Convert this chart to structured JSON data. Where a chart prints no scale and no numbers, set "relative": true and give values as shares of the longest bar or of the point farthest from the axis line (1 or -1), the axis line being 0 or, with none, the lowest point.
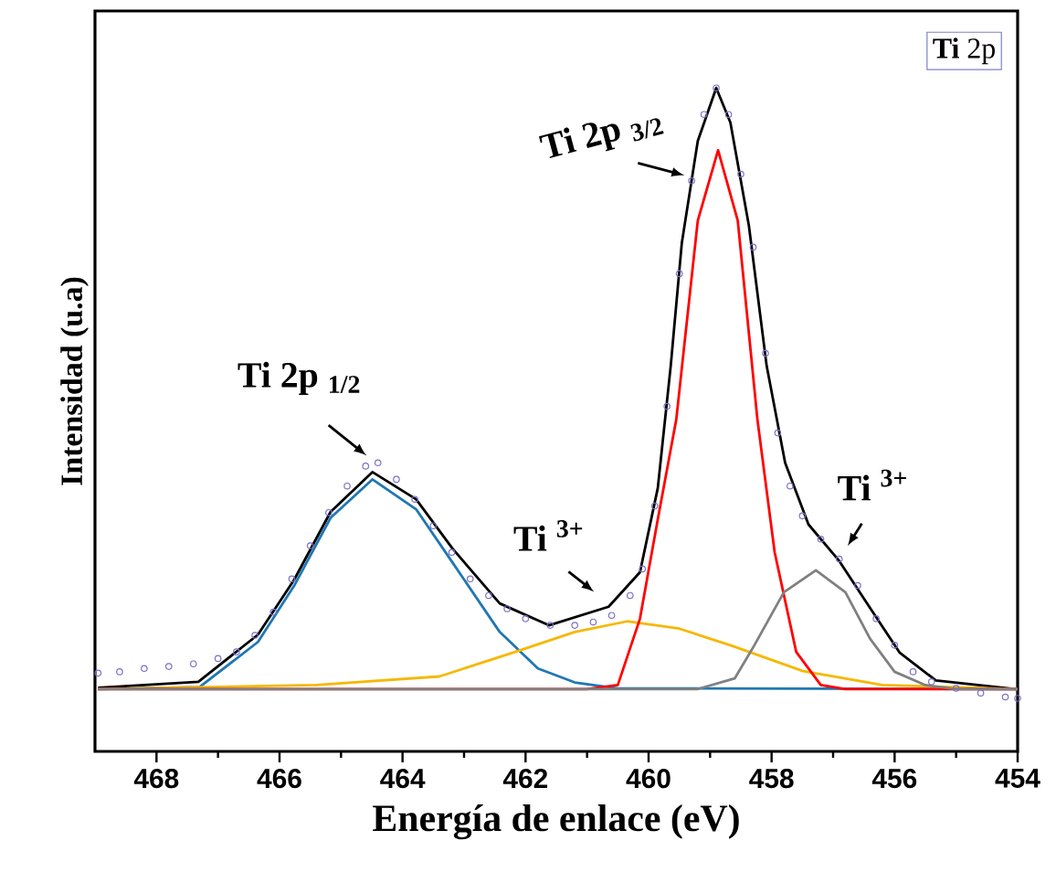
{
  "chart_data": {
    "type": "line",
    "xlabel": "Energía de enlace (eV)",
    "ylabel": "Intensidad (u.a)",
    "relative": true,
    "xlim": [
      469,
      454
    ],
    "xticks": [
      468,
      466,
      464,
      462,
      460,
      458,
      456,
      454
    ],
    "series": [
      {
        "type": "scatter",
        "marker": "circle",
        "color": "#7b70c8",
        "x": [
          468.95,
          468.6,
          468.2,
          467.8,
          467.4,
          467.0,
          466.7,
          466.4,
          466.1,
          465.8,
          465.5,
          465.2,
          464.9,
          464.6,
          464.4,
          464.1,
          463.8,
          463.5,
          463.2,
          462.9,
          462.6,
          462.3,
          462.0,
          461.6,
          461.2,
          460.9,
          460.6,
          460.3,
          460.1,
          459.9,
          459.7,
          459.5,
          459.3,
          459.1,
          458.9,
          458.7,
          458.5,
          458.3,
          458.1,
          457.9,
          457.7,
          457.5,
          457.2,
          456.9,
          456.6,
          456.3,
          456.0,
          455.7,
          455.4,
          455.0,
          454.6,
          454.2,
          454.0
        ],
        "values": [
          0.118,
          0.12,
          0.125,
          0.128,
          0.132,
          0.14,
          0.15,
          0.175,
          0.21,
          0.26,
          0.31,
          0.36,
          0.4,
          0.43,
          0.435,
          0.41,
          0.38,
          0.34,
          0.3,
          0.26,
          0.235,
          0.215,
          0.2,
          0.19,
          0.19,
          0.195,
          0.205,
          0.235,
          0.275,
          0.37,
          0.52,
          0.72,
          0.86,
          0.96,
          1.0,
          0.96,
          0.87,
          0.76,
          0.6,
          0.48,
          0.4,
          0.355,
          0.32,
          0.29,
          0.25,
          0.2,
          0.16,
          0.12,
          0.105,
          0.095,
          0.088,
          0.082,
          0.08
        ]
      },
      {
        "color": "#000000",
        "x": [
          468.95,
          467.32,
          466.35,
          465.76,
          465.17,
          464.49,
          463.78,
          463.19,
          462.42,
          461.62,
          460.65,
          460.14,
          459.85,
          459.64,
          459.46,
          459.2,
          458.9,
          458.67,
          458.37,
          458.08,
          457.78,
          457.4,
          456.9,
          456.39,
          455.92,
          455.33,
          454.03
        ],
        "values": [
          0.096,
          0.105,
          0.176,
          0.259,
          0.361,
          0.421,
          0.38,
          0.306,
          0.223,
          0.19,
          0.218,
          0.27,
          0.397,
          0.581,
          0.766,
          0.92,
          1.0,
          0.948,
          0.793,
          0.581,
          0.435,
          0.342,
          0.287,
          0.215,
          0.149,
          0.107,
          0.094
        ]
      },
      {
        "color": "#1f77b4",
        "x": [
          468.95,
          467.3,
          466.35,
          465.76,
          465.17,
          464.49,
          463.78,
          463.19,
          462.42,
          461.8,
          461.2,
          460.5,
          454.0
        ],
        "values": [
          0.094,
          0.097,
          0.165,
          0.25,
          0.352,
          0.41,
          0.365,
          0.285,
          0.18,
          0.125,
          0.104,
          0.095,
          0.094
        ]
      },
      {
        "color": "#f5b800",
        "x": [
          468.95,
          465.4,
          463.4,
          462.2,
          461.2,
          460.35,
          459.5,
          458.67,
          457.49,
          456.2,
          454.0
        ],
        "values": [
          0.094,
          0.1,
          0.113,
          0.149,
          0.18,
          0.196,
          0.185,
          0.16,
          0.121,
          0.1,
          0.094
        ]
      },
      {
        "color": "#ff0000",
        "x": [
          468.95,
          461.0,
          460.5,
          460.14,
          459.85,
          459.55,
          459.2,
          458.87,
          458.55,
          458.23,
          457.95,
          457.6,
          457.2,
          456.8,
          454.0
        ],
        "values": [
          0.094,
          0.094,
          0.1,
          0.2,
          0.35,
          0.5,
          0.8,
          0.906,
          0.8,
          0.5,
          0.3,
          0.15,
          0.1,
          0.094,
          0.094
        ]
      },
      {
        "color": "#808080",
        "x": [
          468.95,
          459.2,
          458.6,
          458.28,
          457.8,
          457.28,
          456.8,
          456.4,
          456.0,
          455.5,
          455.0,
          454.0
        ],
        "values": [
          0.094,
          0.094,
          0.11,
          0.16,
          0.24,
          0.273,
          0.24,
          0.17,
          0.12,
          0.1,
          0.094,
          0.094
        ]
      }
    ],
    "annotations": [
      {
        "text": "Ti 2p $_{1/2}$",
        "x": 464.49,
        "y": 0.43
      },
      {
        "text": "Ti 2p $_{3/2}$",
        "x": 459.3,
        "y": 0.86
      },
      {
        "text": "Ti $^{3+}$",
        "x": 460.82,
        "y": 0.229
      },
      {
        "text": "Ti $^{3+}$",
        "x": 456.8,
        "y": 0.297
      },
      "**Ti** 2p"
    ]
  }
}
